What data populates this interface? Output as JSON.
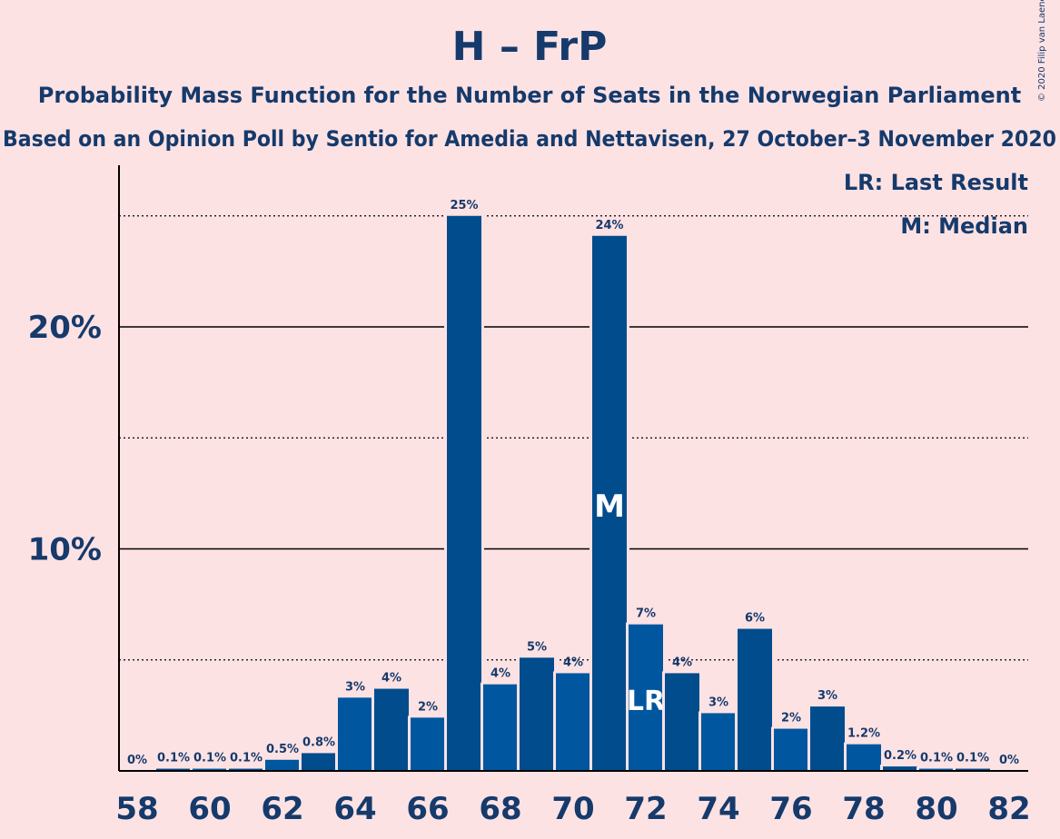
{
  "chart_data": {
    "type": "bar",
    "title": "H – FrP",
    "subtitle": "Probability Mass Function for the Number of Seats in the Norwegian Parliament",
    "subtitle2": "Based on an Opinion Poll by Sentio for Amedia and Nettavisen, 27 October–3 November 2020",
    "copyright": "© 2020 Filip van Laenen",
    "legend": {
      "last_result": "LR: Last Result",
      "median": "M: Median",
      "placement": "top-right"
    },
    "ylim": [
      0,
      27
    ],
    "yticks": [
      {
        "value": 10,
        "label": "10%"
      },
      {
        "value": 20,
        "label": "20%"
      }
    ],
    "ydotted": [
      5,
      15,
      25
    ],
    "xticks": [
      58,
      60,
      62,
      64,
      66,
      68,
      70,
      72,
      74,
      76,
      78,
      80,
      82
    ],
    "bars": [
      {
        "seats": 58,
        "value": 0.0,
        "label": "0%"
      },
      {
        "seats": 59,
        "value": 0.1,
        "label": "0.1%"
      },
      {
        "seats": 60,
        "value": 0.1,
        "label": "0.1%"
      },
      {
        "seats": 61,
        "value": 0.1,
        "label": "0.1%"
      },
      {
        "seats": 62,
        "value": 0.5,
        "label": "0.5%"
      },
      {
        "seats": 63,
        "value": 0.8,
        "label": "0.8%"
      },
      {
        "seats": 64,
        "value": 3.3,
        "label": "3%"
      },
      {
        "seats": 65,
        "value": 3.7,
        "label": "4%"
      },
      {
        "seats": 66,
        "value": 2.4,
        "label": "2%"
      },
      {
        "seats": 67,
        "value": 25.0,
        "label": "25%"
      },
      {
        "seats": 68,
        "value": 3.9,
        "label": "4%"
      },
      {
        "seats": 69,
        "value": 5.1,
        "label": "5%"
      },
      {
        "seats": 70,
        "value": 4.4,
        "label": "4%"
      },
      {
        "seats": 71,
        "value": 24.1,
        "label": "24%",
        "marker": "M"
      },
      {
        "seats": 72,
        "value": 6.6,
        "label": "7%",
        "marker": "LR"
      },
      {
        "seats": 73,
        "value": 4.4,
        "label": "4%"
      },
      {
        "seats": 74,
        "value": 2.6,
        "label": "3%"
      },
      {
        "seats": 75,
        "value": 6.4,
        "label": "6%"
      },
      {
        "seats": 76,
        "value": 1.9,
        "label": "2%"
      },
      {
        "seats": 77,
        "value": 2.9,
        "label": "3%"
      },
      {
        "seats": 78,
        "value": 1.2,
        "label": "1.2%"
      },
      {
        "seats": 79,
        "value": 0.2,
        "label": "0.2%"
      },
      {
        "seats": 80,
        "value": 0.1,
        "label": "0.1%"
      },
      {
        "seats": 81,
        "value": 0.1,
        "label": "0.1%"
      },
      {
        "seats": 82,
        "value": 0.0,
        "label": "0%"
      }
    ],
    "colors": {
      "background": "#fde2e4",
      "bar_dark": "#004c8c",
      "bar_light": "#00579f",
      "text": "#153a6b",
      "axis": "#000000"
    }
  }
}
